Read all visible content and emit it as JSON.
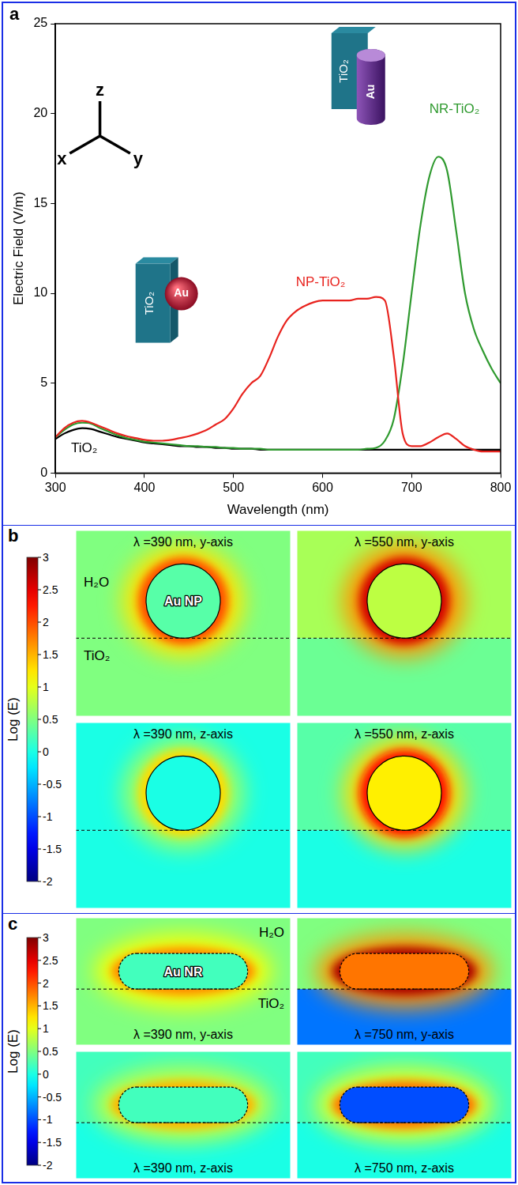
{
  "chart_data": {
    "type": "line",
    "panel_label": "a",
    "x_label": "Wavelength (nm)",
    "y_label": "Electric Field (V/m)",
    "axis_triad": [
      "x",
      "y",
      "z"
    ],
    "insets": [
      {
        "substrate": "TiO₂",
        "particle": "Au"
      },
      {
        "substrate": "TiO₂",
        "particle": "Au"
      }
    ],
    "x": [
      300,
      310,
      320,
      330,
      340,
      350,
      360,
      370,
      380,
      390,
      400,
      410,
      420,
      430,
      440,
      450,
      460,
      470,
      480,
      490,
      500,
      510,
      520,
      530,
      540,
      550,
      560,
      570,
      580,
      590,
      600,
      610,
      620,
      630,
      640,
      650,
      660,
      670,
      680,
      690,
      700,
      710,
      720,
      730,
      740,
      750,
      760,
      770,
      780,
      790,
      800
    ],
    "series": [
      {
        "name": "NP-TiO₂",
        "color": "#e8231e",
        "values": [
          2.0,
          2.5,
          2.8,
          2.9,
          2.8,
          2.6,
          2.4,
          2.2,
          2.05,
          1.95,
          1.85,
          1.8,
          1.8,
          1.85,
          1.95,
          2.05,
          2.2,
          2.4,
          2.7,
          3.0,
          3.6,
          4.4,
          5.0,
          5.4,
          6.4,
          7.6,
          8.5,
          9.0,
          9.3,
          9.5,
          9.6,
          9.6,
          9.6,
          9.6,
          9.7,
          9.7,
          9.8,
          9.6,
          6.5,
          2.2,
          1.5,
          1.5,
          1.7,
          2.0,
          2.2,
          1.9,
          1.5,
          1.3,
          1.2,
          1.2,
          1.2
        ]
      },
      {
        "name": "NR-TiO₂",
        "color": "#2f9a2f",
        "values": [
          2.0,
          2.4,
          2.7,
          2.8,
          2.75,
          2.5,
          2.3,
          2.1,
          1.95,
          1.85,
          1.75,
          1.7,
          1.65,
          1.6,
          1.55,
          1.5,
          1.5,
          1.45,
          1.45,
          1.4,
          1.4,
          1.35,
          1.35,
          1.35,
          1.3,
          1.3,
          1.3,
          1.3,
          1.3,
          1.3,
          1.3,
          1.3,
          1.3,
          1.3,
          1.3,
          1.35,
          1.4,
          1.8,
          3.0,
          6.0,
          10.0,
          13.8,
          16.5,
          17.6,
          16.8,
          13.5,
          10.0,
          8.0,
          6.8,
          5.8,
          5.0
        ]
      },
      {
        "name": "TiO₂",
        "color": "#000000",
        "values": [
          1.9,
          2.2,
          2.4,
          2.5,
          2.45,
          2.3,
          2.15,
          2.0,
          1.9,
          1.8,
          1.7,
          1.65,
          1.6,
          1.55,
          1.5,
          1.5,
          1.45,
          1.45,
          1.4,
          1.4,
          1.35,
          1.35,
          1.35,
          1.3,
          1.3,
          1.3,
          1.3,
          1.3,
          1.3,
          1.3,
          1.3,
          1.3,
          1.3,
          1.3,
          1.3,
          1.3,
          1.3,
          1.3,
          1.3,
          1.3,
          1.3,
          1.3,
          1.3,
          1.3,
          1.3,
          1.3,
          1.3,
          1.3,
          1.3,
          1.3,
          1.3
        ]
      }
    ],
    "xlim": [
      300,
      800
    ],
    "xticks": [
      300,
      400,
      500,
      600,
      700,
      800
    ],
    "ylim": [
      0,
      25
    ],
    "yticks": [
      0,
      5,
      10,
      15,
      20,
      25
    ],
    "grid": false
  },
  "field_maps": {
    "colorbar": {
      "title": "Log (E)",
      "range": [
        -2,
        3
      ],
      "ticks": [
        3,
        2.5,
        2,
        1.5,
        1,
        0.5,
        0,
        -0.5,
        -1,
        -1.5,
        -2
      ]
    },
    "panels": [
      {
        "panel_label": "b",
        "particle": "Au NP",
        "medium": "H₂O",
        "substrate": "TiO₂",
        "maps": [
          {
            "title": "λ =390 nm, y-axis",
            "medium_log_e": 0.5,
            "substrate_log_e": 0.5,
            "particle_log_e": 0.3,
            "hotspot_log_e": 2.0
          },
          {
            "title": "λ =550 nm, y-axis",
            "medium_log_e": 0.7,
            "substrate_log_e": 0.4,
            "particle_log_e": 0.8,
            "hotspot_log_e": 2.6
          },
          {
            "title": "λ =390 nm, z-axis",
            "medium_log_e": 0.0,
            "substrate_log_e": 0.0,
            "particle_log_e": 0.0,
            "hotspot_log_e": 1.3
          },
          {
            "title": "λ =550 nm, z-axis",
            "medium_log_e": 0.3,
            "substrate_log_e": 0.0,
            "particle_log_e": 1.2,
            "hotspot_log_e": 2.3
          }
        ]
      },
      {
        "panel_label": "c",
        "particle": "Au NR",
        "medium": "H₂O",
        "substrate": "TiO₂",
        "maps": [
          {
            "title": "λ =390 nm, y-axis",
            "medium_log_e": 0.5,
            "substrate_log_e": 0.5,
            "particle_log_e": 0.2,
            "hotspot_log_e": 1.7
          },
          {
            "title": "λ =750 nm, y-axis",
            "medium_log_e": 0.5,
            "substrate_log_e": -0.8,
            "particle_log_e": 1.8,
            "hotspot_log_e": 2.8
          },
          {
            "title": "λ =390 nm, z-axis",
            "medium_log_e": 0.2,
            "substrate_log_e": 0.0,
            "particle_log_e": 0.2,
            "hotspot_log_e": 1.5
          },
          {
            "title": "λ =750 nm, z-axis",
            "medium_log_e": 0.2,
            "substrate_log_e": 0.0,
            "particle_log_e": -1.0,
            "hotspot_log_e": 1.8
          }
        ]
      }
    ]
  }
}
